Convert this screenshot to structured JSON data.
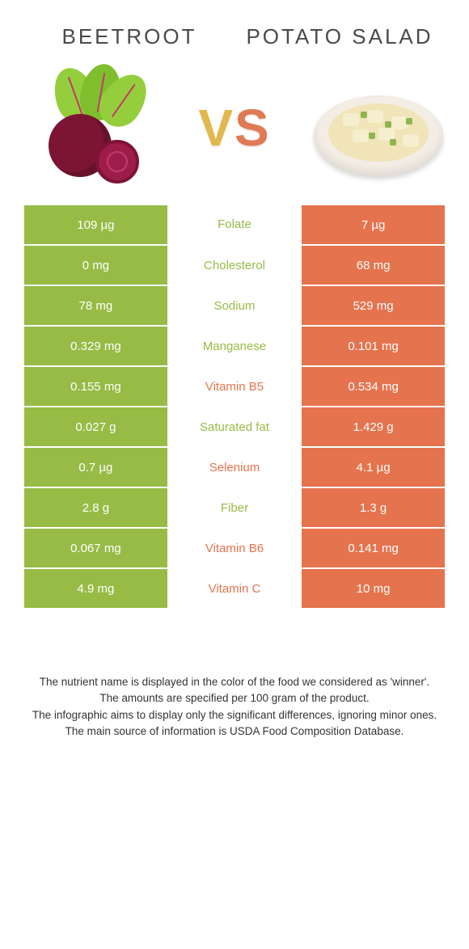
{
  "colors": {
    "left": "#97bb45",
    "right": "#e5734d",
    "bg": "#ffffff"
  },
  "header": {
    "left_title": "Beetroot",
    "right_title": "Potato salad",
    "vs": "VS"
  },
  "rows": [
    {
      "left": "109 µg",
      "label": "Folate",
      "right": "7 µg",
      "winner": "left"
    },
    {
      "left": "0 mg",
      "label": "Cholesterol",
      "right": "68 mg",
      "winner": "left"
    },
    {
      "left": "78 mg",
      "label": "Sodium",
      "right": "529 mg",
      "winner": "left"
    },
    {
      "left": "0.329 mg",
      "label": "Manganese",
      "right": "0.101 mg",
      "winner": "left"
    },
    {
      "left": "0.155 mg",
      "label": "Vitamin B5",
      "right": "0.534 mg",
      "winner": "right"
    },
    {
      "left": "0.027 g",
      "label": "Saturated fat",
      "right": "1.429 g",
      "winner": "left"
    },
    {
      "left": "0.7 µg",
      "label": "Selenium",
      "right": "4.1 µg",
      "winner": "right"
    },
    {
      "left": "2.8 g",
      "label": "Fiber",
      "right": "1.3 g",
      "winner": "left"
    },
    {
      "left": "0.067 mg",
      "label": "Vitamin B6",
      "right": "0.141 mg",
      "winner": "right"
    },
    {
      "left": "4.9 mg",
      "label": "Vitamin C",
      "right": "10 mg",
      "winner": "right"
    }
  ],
  "footer": {
    "line1": "The nutrient name is displayed in the color of the food we considered as 'winner'.",
    "line2": "The amounts are specified per 100 gram of the product.",
    "line3": "The infographic aims to display only the significant differences, ignoring minor ones.",
    "line4": "The main source of information is USDA Food Composition Database."
  }
}
